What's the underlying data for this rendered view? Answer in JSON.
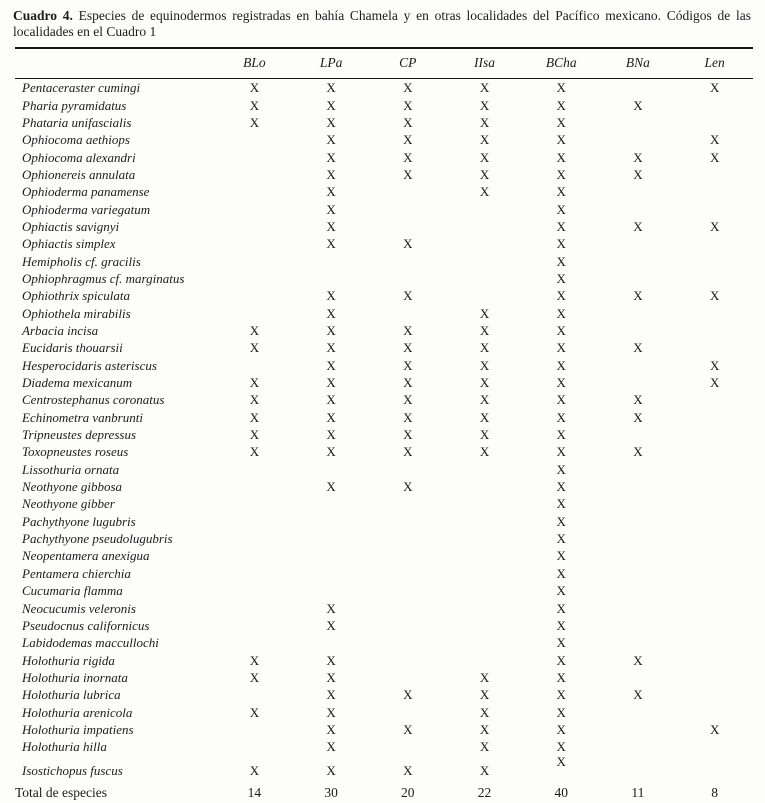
{
  "caption": {
    "label": "Cuadro 4.",
    "text": " Especies de equinodermos registradas en bahía Chamela y en otras localidades del Pacífico mexicano. Códigos de las localidades en el Cuadro 1"
  },
  "table": {
    "columns": [
      "BLo",
      "LPa",
      "CP",
      "IIsa",
      "BCha",
      "BNa",
      "Len"
    ],
    "mark_glyph": "X",
    "rows": [
      {
        "species": "Pentaceraster cumingi",
        "marks": [
          "X",
          "X",
          "X",
          "X",
          "X",
          "",
          "X"
        ]
      },
      {
        "species": "Pharia pyramidatus",
        "marks": [
          "X",
          "X",
          "X",
          "X",
          "X",
          "X",
          ""
        ]
      },
      {
        "species": "Phataria unifascialis",
        "marks": [
          "X",
          "X",
          "X",
          "X",
          "X",
          "",
          ""
        ]
      },
      {
        "species": "Ophiocoma aethiops",
        "marks": [
          "",
          "X",
          "X",
          "X",
          "X",
          "",
          "X"
        ]
      },
      {
        "species": "Ophiocoma alexandri",
        "marks": [
          "",
          "X",
          "X",
          "X",
          "X",
          "X",
          "X"
        ]
      },
      {
        "species": "Ophionereis annulata",
        "marks": [
          "",
          "X",
          "X",
          "X",
          "X",
          "X",
          ""
        ]
      },
      {
        "species": "Ophioderma panamense",
        "marks": [
          "",
          "X",
          "",
          "X",
          "X",
          "",
          ""
        ]
      },
      {
        "species": "Ophioderma variegatum",
        "marks": [
          "",
          "X",
          "",
          "",
          "X",
          "",
          ""
        ]
      },
      {
        "species": "Ophiactis savignyi",
        "marks": [
          "",
          "X",
          "",
          "",
          "X",
          "X",
          "X"
        ]
      },
      {
        "species": "Ophiactis simplex",
        "marks": [
          "",
          "X",
          "X",
          "",
          "X",
          "",
          ""
        ]
      },
      {
        "species": "Hemipholis cf. gracilis",
        "marks": [
          "",
          "",
          "",
          "",
          "X",
          "",
          ""
        ]
      },
      {
        "species": "Ophiophragmus cf. marginatus",
        "marks": [
          "",
          "",
          "",
          "",
          "X",
          "",
          ""
        ]
      },
      {
        "species": "Ophiothrix spiculata",
        "marks": [
          "",
          "X",
          "X",
          "",
          "X",
          "X",
          "X"
        ]
      },
      {
        "species": "Ophiothela mirabilis",
        "marks": [
          "",
          "X",
          "",
          "X",
          "X",
          "",
          ""
        ]
      },
      {
        "species": "Arbacia incisa",
        "marks": [
          "X",
          "X",
          "X",
          "X",
          "X",
          "",
          ""
        ]
      },
      {
        "species": "Eucidaris thouarsii",
        "marks": [
          "X",
          "X",
          "X",
          "X",
          "X",
          "X",
          ""
        ]
      },
      {
        "species": "Hesperocidaris asteriscus",
        "marks": [
          "",
          "X",
          "X",
          "X",
          "X",
          "",
          "X"
        ]
      },
      {
        "species": "Diadema mexicanum",
        "marks": [
          "X",
          "X",
          "X",
          "X",
          "X",
          "",
          "X"
        ]
      },
      {
        "species": "Centrostephanus coronatus",
        "marks": [
          "X",
          "X",
          "X",
          "X",
          "X",
          "X",
          ""
        ]
      },
      {
        "species": "Echinometra vanbrunti",
        "marks": [
          "X",
          "X",
          "X",
          "X",
          "X",
          "X",
          ""
        ]
      },
      {
        "species": "Tripneustes depressus",
        "marks": [
          "X",
          "X",
          "X",
          "X",
          "X",
          "",
          ""
        ]
      },
      {
        "species": "Toxopneustes roseus",
        "marks": [
          "X",
          "X",
          "X",
          "X",
          "X",
          "X",
          ""
        ]
      },
      {
        "species": "Lissothuria ornata",
        "marks": [
          "",
          "",
          "",
          "",
          "X",
          "",
          ""
        ]
      },
      {
        "species": "Neothyone gibbosa",
        "marks": [
          "",
          "X",
          "X",
          "",
          "X",
          "",
          ""
        ]
      },
      {
        "species": "Neothyone gibber",
        "marks": [
          "",
          "",
          "",
          "",
          "X",
          "",
          ""
        ]
      },
      {
        "species": "Pachythyone lugubris",
        "marks": [
          "",
          "",
          "",
          "",
          "X",
          "",
          ""
        ]
      },
      {
        "species": "Pachythyone pseudolugubris",
        "marks": [
          "",
          "",
          "",
          "",
          "X",
          "",
          ""
        ]
      },
      {
        "species": "Neopentamera anexigua",
        "marks": [
          "",
          "",
          "",
          "",
          "X",
          "",
          ""
        ]
      },
      {
        "species": "Pentamera chierchia",
        "marks": [
          "",
          "",
          "",
          "",
          "X",
          "",
          ""
        ]
      },
      {
        "species": "Cucumaria flamma",
        "marks": [
          "",
          "",
          "",
          "",
          "X",
          "",
          ""
        ]
      },
      {
        "species": "Neocucumis veleronis",
        "marks": [
          "",
          "X",
          "",
          "",
          "X",
          "",
          ""
        ]
      },
      {
        "species": "Pseudocnus californicus",
        "marks": [
          "",
          "X",
          "",
          "",
          "X",
          "",
          ""
        ]
      },
      {
        "species": "Labidodemas maccullochi",
        "marks": [
          "",
          "",
          "",
          "",
          "X",
          "",
          ""
        ]
      },
      {
        "species": "Holothuria rigida",
        "marks": [
          "X",
          "X",
          "",
          "",
          "X",
          "X",
          ""
        ]
      },
      {
        "species": "Holothuria inornata",
        "marks": [
          "X",
          "X",
          "",
          "X",
          "X",
          "",
          ""
        ]
      },
      {
        "species": "Holothuria lubrica",
        "marks": [
          "",
          "X",
          "X",
          "X",
          "X",
          "X",
          ""
        ]
      },
      {
        "species": "Holothuria arenicola",
        "marks": [
          "X",
          "X",
          "",
          "X",
          "X",
          "",
          ""
        ]
      },
      {
        "species": "Holothuria impatiens",
        "marks": [
          "",
          "X",
          "X",
          "X",
          "X",
          "",
          "X"
        ]
      },
      {
        "species": "Holothuria hilla",
        "marks": [
          "",
          "X",
          "",
          "X",
          "X",
          "",
          ""
        ]
      },
      {
        "species": "Isostichopus fuscus",
        "marks": [
          "X",
          "X",
          "X",
          "X",
          "X",
          "",
          ""
        ],
        "spaced": true,
        "raised_col": 4
      }
    ],
    "total_row": {
      "label": "Total de especies",
      "values": [
        "14",
        "30",
        "20",
        "22",
        "40",
        "11",
        "8"
      ]
    }
  }
}
